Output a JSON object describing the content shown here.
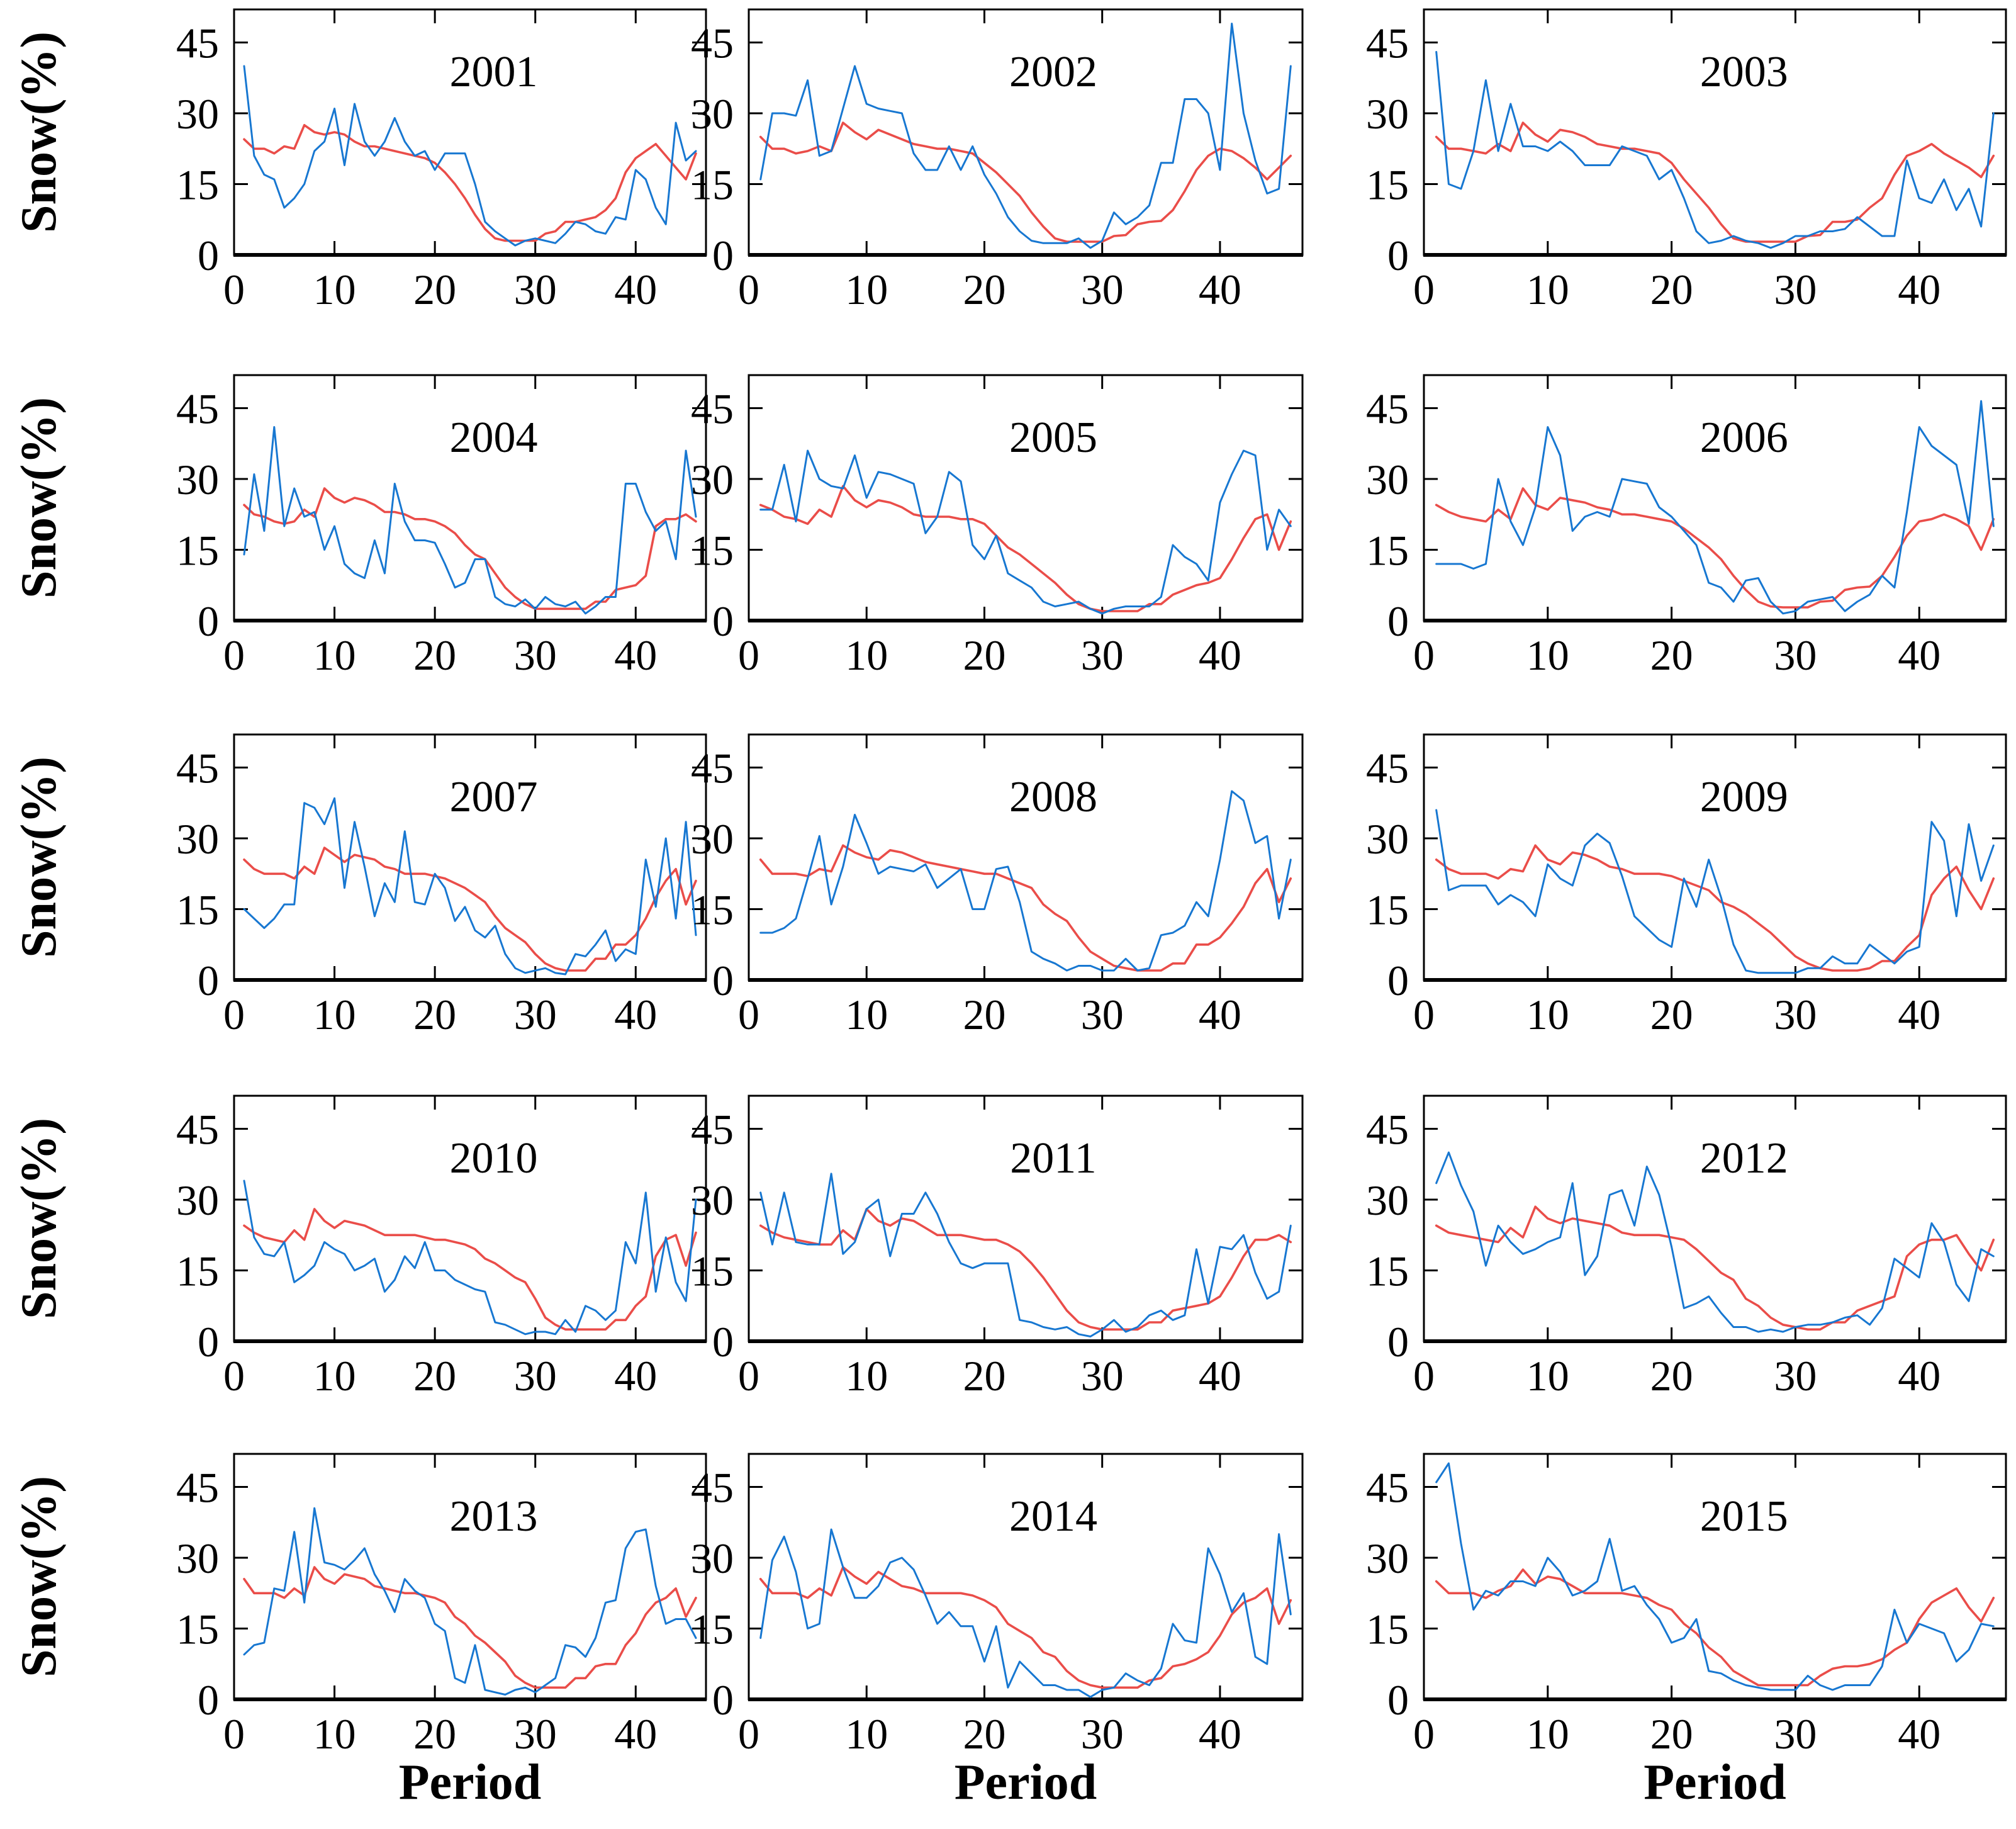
{
  "figure": {
    "ylabel": "Snow(%)",
    "xlabel": "Period",
    "colors": {
      "observed": "#1777d1",
      "mean": "#ea4d49",
      "axis": "#000000"
    },
    "x_ticks": [
      0,
      10,
      20,
      30,
      40
    ],
    "y_ticks": [
      0,
      15,
      30,
      45
    ],
    "x_range": [
      0,
      47
    ],
    "y_range": [
      0,
      52
    ],
    "grid": "off",
    "legend": "none"
  },
  "chart_data": [
    {
      "type": "line",
      "title": "2001",
      "x_start": 1,
      "observed": [
        40,
        21,
        17,
        16,
        10,
        12,
        15,
        22,
        24,
        31,
        19,
        32,
        24,
        21,
        24,
        29,
        24,
        21,
        22,
        18,
        21.5,
        21.5,
        21.5,
        15,
        7,
        5,
        3.5,
        2,
        3,
        3.5,
        3,
        2.5,
        4.5,
        7,
        6.5,
        5,
        4.5,
        8,
        7.5,
        18,
        16,
        10,
        6.5,
        28,
        20,
        22
      ],
      "mean": [
        24.5,
        22.5,
        22.5,
        21.5,
        23,
        22.5,
        27.5,
        26,
        25.5,
        26,
        25.5,
        24,
        23,
        23,
        22.5,
        22,
        21.5,
        21,
        20.5,
        19.5,
        17.5,
        15,
        12,
        8.5,
        5.5,
        3.5,
        3,
        3,
        3,
        3,
        4.5,
        5,
        7,
        7,
        7.5,
        8,
        9.5,
        12,
        17.5,
        20.5,
        22,
        23.5,
        21,
        18.5,
        16,
        21.5
      ]
    },
    {
      "type": "line",
      "title": "2002",
      "x_start": 1,
      "observed": [
        16,
        30,
        30,
        29.5,
        37,
        21,
        22,
        31,
        40,
        32,
        31,
        30.5,
        30,
        21.5,
        18,
        18,
        23,
        18,
        23,
        17,
        13,
        8,
        5,
        3,
        2.5,
        2.5,
        2.5,
        3.5,
        1.5,
        3,
        9,
        6.5,
        8,
        10.5,
        19.5,
        19.5,
        33,
        33,
        30,
        18,
        49,
        30,
        20,
        13,
        14,
        40
      ],
      "mean": [
        25,
        22.5,
        22.5,
        21.5,
        22,
        23,
        22,
        28,
        26,
        24.5,
        26.5,
        25.5,
        24.5,
        23.5,
        23,
        22.5,
        22.5,
        22,
        21.5,
        19.5,
        17.5,
        15,
        12.5,
        9,
        6,
        3.5,
        2.8,
        2.8,
        2.8,
        2.8,
        4,
        4.2,
        6.5,
        7,
        7.2,
        9.5,
        13.5,
        18,
        21,
        22.5,
        22,
        20.5,
        18.5,
        16,
        18.5,
        21
      ]
    },
    {
      "type": "line",
      "title": "2003",
      "x_start": 1,
      "observed": [
        43,
        15,
        14,
        22,
        37,
        22,
        32,
        23,
        23,
        22,
        24,
        22,
        19,
        19,
        19,
        23,
        22,
        21,
        16,
        18,
        12,
        5,
        2.5,
        3,
        4,
        3,
        2.5,
        1.5,
        2.5,
        4,
        4,
        5,
        5,
        5.5,
        8,
        6,
        4,
        4,
        20,
        12,
        11,
        16,
        9.5,
        14,
        6,
        30
      ],
      "mean": [
        25,
        22.5,
        22.5,
        22,
        21.5,
        23.5,
        22,
        28,
        25.5,
        24,
        26.5,
        26,
        25,
        23.5,
        23,
        22.5,
        22.5,
        22,
        21.5,
        19.5,
        16,
        13,
        10,
        6.5,
        3.5,
        2.8,
        2.8,
        2.8,
        2.8,
        2.8,
        4,
        4.2,
        7,
        7,
        7.5,
        10,
        12,
        17,
        21,
        22,
        23.5,
        21.5,
        20,
        18.5,
        16.5,
        21
      ]
    },
    {
      "type": "line",
      "title": "2004",
      "x_start": 1,
      "observed": [
        14,
        31,
        19,
        41,
        20,
        28,
        22,
        23,
        15,
        20,
        12,
        10,
        9,
        17,
        10,
        29,
        21,
        17,
        17,
        16.5,
        12,
        7,
        8,
        13,
        13,
        5,
        3.5,
        3,
        4.5,
        2.5,
        5,
        3.5,
        3,
        4,
        1.5,
        3,
        5,
        5,
        29,
        29,
        23,
        19,
        21,
        13,
        36,
        22
      ],
      "mean": [
        24.5,
        22.5,
        22,
        21,
        20.5,
        21,
        23.5,
        22,
        28,
        26,
        25,
        26,
        25.5,
        24.5,
        23,
        23,
        22.5,
        21.5,
        21.5,
        21,
        20,
        18.5,
        16,
        14,
        13,
        10,
        7,
        5,
        3.5,
        2.5,
        2.5,
        2.5,
        2.5,
        2.5,
        2.5,
        4,
        4,
        6.5,
        7,
        7.5,
        9.5,
        20,
        21.5,
        21.5,
        22.5,
        21
      ]
    },
    {
      "type": "line",
      "title": "2005",
      "x_start": 1,
      "observed": [
        23.5,
        23.5,
        33,
        21,
        36,
        30,
        28.5,
        28,
        35,
        26,
        31.5,
        31,
        30,
        29,
        18.5,
        22,
        31.5,
        29.5,
        16,
        13,
        18,
        10,
        8.5,
        7,
        4,
        3,
        3.5,
        4,
        2.5,
        1.5,
        2.5,
        3,
        3,
        3,
        5,
        16,
        13.5,
        12,
        8.5,
        25,
        31,
        36,
        35,
        15,
        23.5,
        20
      ],
      "mean": [
        24.5,
        23.5,
        22,
        21.5,
        20.5,
        23.5,
        22,
        28.5,
        25.5,
        24,
        25.5,
        25,
        24,
        22.5,
        22,
        22,
        22,
        21.5,
        21.5,
        20.5,
        18,
        15.5,
        14,
        12,
        10,
        8,
        5.5,
        3.5,
        2.5,
        2,
        2,
        2,
        2,
        3.5,
        3.5,
        5.5,
        6.5,
        7.5,
        8,
        9,
        13,
        17.5,
        21.5,
        22.5,
        15,
        21
      ]
    },
    {
      "type": "line",
      "title": "2006",
      "x_start": 1,
      "observed": [
        12,
        12,
        12,
        11,
        12,
        30,
        21,
        16,
        24,
        41,
        35,
        19,
        22,
        23,
        22,
        30,
        29.5,
        29,
        24,
        22,
        19,
        16,
        8,
        7,
        4,
        8.5,
        9,
        4,
        1.5,
        2,
        4,
        4.5,
        5,
        2,
        4,
        5.5,
        9.5,
        7,
        23,
        41,
        37,
        35,
        33,
        20.5,
        46.5,
        20
      ],
      "mean": [
        24.5,
        23,
        22,
        21.5,
        21,
        23.5,
        21.5,
        28,
        24.5,
        23.5,
        26,
        25.5,
        25,
        24,
        23.5,
        22.5,
        22.5,
        22,
        21.5,
        21,
        19.5,
        17.5,
        15.5,
        13,
        9.5,
        6.5,
        4,
        3,
        2.8,
        2.8,
        2.8,
        4,
        4.2,
        6.5,
        7,
        7.2,
        9.5,
        13.5,
        18,
        21,
        21.5,
        22.5,
        21.5,
        20,
        15,
        21.5
      ]
    },
    {
      "type": "line",
      "title": "2007",
      "x_start": 1,
      "observed": [
        15,
        13,
        11,
        13,
        16,
        16,
        37.5,
        36.5,
        33,
        38.5,
        19.5,
        33.5,
        24,
        13.5,
        20.5,
        16.5,
        31.5,
        16.5,
        16,
        22.5,
        19.5,
        12.5,
        15.5,
        10.5,
        9,
        11.5,
        5.5,
        2.5,
        1.5,
        2,
        2.5,
        1.5,
        1.2,
        5.5,
        5,
        7.5,
        10.5,
        4,
        6.5,
        5.5,
        25.5,
        15.5,
        30,
        13,
        33.5,
        9.5
      ],
      "mean": [
        25.5,
        23.5,
        22.5,
        22.5,
        22.5,
        21.5,
        24,
        22.5,
        28,
        26.5,
        25,
        26.5,
        26,
        25.5,
        24,
        23.5,
        22.5,
        22.5,
        22.5,
        22,
        21.5,
        20.5,
        19.5,
        18,
        16.5,
        13.5,
        11,
        9.5,
        8,
        5.5,
        3.5,
        2.5,
        2,
        2,
        2,
        4.5,
        4.5,
        7.5,
        7.5,
        9.5,
        13,
        17.5,
        21,
        23.5,
        16,
        21
      ]
    },
    {
      "type": "line",
      "title": "2008",
      "x_start": 1,
      "observed": [
        10,
        10,
        11,
        13,
        21.5,
        30.5,
        16,
        24,
        35,
        29,
        22.5,
        24,
        23.5,
        23,
        24.5,
        19.5,
        21.5,
        23.5,
        15,
        15,
        23.5,
        24,
        16.5,
        6,
        4.5,
        3.5,
        2,
        3,
        3,
        2,
        2,
        4.5,
        2,
        2.5,
        9.5,
        10,
        11.5,
        16.5,
        13.5,
        25.5,
        40,
        38,
        29,
        30.5,
        13,
        25.5
      ],
      "mean": [
        25.5,
        22.5,
        22.5,
        22.5,
        22,
        23.5,
        23,
        28.5,
        27,
        26,
        25.5,
        27.5,
        27,
        26,
        25,
        24.5,
        24,
        23.5,
        23,
        22.5,
        22.5,
        21.5,
        20.5,
        19.5,
        16,
        14,
        12.5,
        9,
        6,
        4.5,
        3,
        2.5,
        2,
        2,
        2,
        3.5,
        3.5,
        7.5,
        7.5,
        9,
        12,
        15.5,
        20.5,
        23.5,
        16.5,
        21.5
      ]
    },
    {
      "type": "line",
      "title": "2009",
      "x_start": 1,
      "observed": [
        36,
        19,
        20,
        20,
        20,
        16,
        18,
        16.5,
        13.5,
        24.5,
        21.5,
        20,
        28.5,
        31,
        29,
        22,
        13.5,
        11,
        8.5,
        7,
        21.5,
        15.5,
        25.5,
        17.5,
        7.5,
        2,
        1.5,
        1.5,
        1.5,
        1.5,
        2.5,
        2.5,
        5,
        3.5,
        3.5,
        7.5,
        5.5,
        3.5,
        6,
        7,
        33.5,
        29.5,
        13.5,
        33,
        21,
        28.5
      ],
      "mean": [
        25.5,
        23.5,
        22.5,
        22.5,
        22.5,
        21.5,
        23.5,
        23,
        28.5,
        25.5,
        24.5,
        27,
        26.5,
        25.5,
        24,
        23.5,
        22.5,
        22.5,
        22.5,
        22,
        21,
        20,
        19,
        16.5,
        15.5,
        14,
        12,
        10,
        7.5,
        5,
        3.5,
        2.5,
        2,
        2,
        2,
        2.5,
        4,
        4,
        7,
        9.5,
        18,
        21.5,
        24,
        19,
        15,
        21.5
      ]
    },
    {
      "type": "line",
      "title": "2010",
      "x_start": 1,
      "observed": [
        34,
        22,
        18.5,
        18,
        21,
        12.5,
        14,
        16,
        21,
        19.5,
        18.5,
        15,
        16,
        17.5,
        10.5,
        13,
        18,
        15.5,
        21,
        15,
        15,
        13,
        12,
        11,
        10.5,
        4,
        3.5,
        2.5,
        1.5,
        2,
        2,
        1.5,
        4.5,
        2,
        7.5,
        6.5,
        4.5,
        6.5,
        21,
        16.5,
        31.5,
        10.5,
        22,
        12.5,
        8.5,
        30
      ],
      "mean": [
        24.5,
        23,
        22,
        21.5,
        21,
        23.5,
        21.5,
        28,
        25.5,
        24,
        25.5,
        25,
        24.5,
        23.5,
        22.5,
        22.5,
        22.5,
        22.5,
        22,
        21.5,
        21.5,
        21,
        20.5,
        19.5,
        17.5,
        16.5,
        15,
        13.5,
        12.5,
        9,
        5,
        3.5,
        2.5,
        2.5,
        2.5,
        2.5,
        2.5,
        4.5,
        4.5,
        7.5,
        9.5,
        18,
        21.5,
        22.5,
        16,
        23
      ]
    },
    {
      "type": "line",
      "title": "2011",
      "x_start": 1,
      "observed": [
        31.5,
        20.5,
        31.5,
        21,
        20.5,
        20.5,
        35.5,
        18.5,
        21,
        28,
        30,
        18,
        27,
        27,
        31.5,
        27,
        21,
        16.5,
        15.5,
        16.5,
        16.5,
        16.5,
        4.5,
        4,
        3,
        2.5,
        3,
        1.5,
        1,
        2.5,
        4.5,
        2,
        3,
        5.5,
        6.5,
        4.5,
        5.5,
        19.5,
        8,
        20,
        19.5,
        22.5,
        14.5,
        9,
        10.5,
        24.5
      ],
      "mean": [
        24.5,
        23,
        22,
        21.5,
        21,
        20.5,
        20.5,
        23.5,
        21.5,
        28,
        25.5,
        24.5,
        26,
        25.5,
        24,
        22.5,
        22.5,
        22.5,
        22,
        21.5,
        21.5,
        20.5,
        19,
        16.5,
        13.5,
        10,
        6.5,
        4,
        3,
        2.5,
        2.5,
        2.5,
        2.5,
        4,
        4,
        6.5,
        7,
        7.5,
        8,
        9.5,
        13.5,
        18,
        21.5,
        21.5,
        22.5,
        21
      ]
    },
    {
      "type": "line",
      "title": "2012",
      "x_start": 1,
      "observed": [
        33.5,
        40,
        33,
        27.5,
        16,
        24.5,
        21,
        18.5,
        19.5,
        21,
        22,
        33.5,
        14,
        18,
        31,
        32,
        24.5,
        37,
        31,
        20,
        7,
        8,
        9.5,
        6,
        3,
        3,
        2,
        2.5,
        2,
        3,
        3.5,
        3.5,
        4,
        5,
        5.5,
        3.5,
        7,
        17.5,
        15.5,
        13.5,
        25,
        21,
        12,
        8.5,
        19.5,
        18
      ],
      "mean": [
        24.5,
        23,
        22.5,
        22,
        21.5,
        21,
        24,
        22,
        28.5,
        26,
        25,
        26,
        25.5,
        25,
        24.5,
        23,
        22.5,
        22.5,
        22.5,
        22,
        21.5,
        19.5,
        17,
        14.5,
        13,
        9,
        7.5,
        5,
        3.5,
        3,
        2.5,
        2.5,
        4,
        4,
        6.5,
        7.5,
        8.5,
        9.5,
        18,
        20.5,
        21.5,
        21.5,
        22.5,
        18.5,
        15,
        21.5
      ]
    },
    {
      "type": "line",
      "title": "2013",
      "x_start": 1,
      "observed": [
        9.5,
        11.5,
        12,
        23.5,
        23,
        35.5,
        20.5,
        40.5,
        29,
        28.5,
        27.5,
        29.5,
        32,
        26.5,
        23,
        18.5,
        25.5,
        23,
        21.5,
        16,
        14.5,
        4.5,
        3.5,
        11.5,
        2,
        1.5,
        1,
        2,
        2.5,
        1.5,
        3,
        4.5,
        11.5,
        11,
        9,
        13,
        20.5,
        21,
        32,
        35.5,
        36,
        24,
        16,
        17,
        17,
        13
      ],
      "mean": [
        25.5,
        22.5,
        22.5,
        22.5,
        21.5,
        23.5,
        22,
        28,
        25.5,
        24.5,
        26.5,
        26,
        25.5,
        24,
        23.5,
        23,
        22.5,
        22.5,
        22,
        21.5,
        20.5,
        17.5,
        16,
        13.5,
        12,
        10,
        8,
        5,
        3.5,
        2.5,
        2.5,
        2.5,
        2.5,
        4.5,
        4.5,
        7,
        7.5,
        7.5,
        11.5,
        14,
        18,
        20.5,
        21.5,
        23.5,
        17.5,
        21.5
      ]
    },
    {
      "type": "line",
      "title": "2014",
      "x_start": 1,
      "observed": [
        13,
        29.5,
        34.5,
        27,
        15,
        16,
        36,
        28,
        21.5,
        21.5,
        24,
        29,
        30,
        27.5,
        22,
        16,
        18.5,
        15.5,
        15.5,
        8,
        15.5,
        2.5,
        8,
        5.5,
        3,
        3,
        2,
        2,
        0.5,
        2,
        2.5,
        5.5,
        4,
        3,
        6.5,
        16,
        12.5,
        12,
        32,
        26.5,
        18.5,
        22.5,
        9,
        7.5,
        35,
        18
      ],
      "mean": [
        25.5,
        22.5,
        22.5,
        22.5,
        21.5,
        23.5,
        22,
        28,
        26,
        24.5,
        27,
        25.5,
        24,
        23.5,
        22.5,
        22.5,
        22.5,
        22.5,
        22,
        21,
        19.5,
        16,
        14.5,
        13,
        10,
        9,
        6,
        4,
        3,
        2.5,
        2.5,
        2.5,
        2.5,
        4,
        4.5,
        7,
        7.5,
        8.5,
        10,
        13.5,
        18,
        20.5,
        21.5,
        23.5,
        16,
        21
      ]
    },
    {
      "type": "line",
      "title": "2015",
      "x_start": 1,
      "observed": [
        46,
        50,
        33,
        19,
        23,
        22,
        25,
        25,
        24,
        30,
        27,
        22,
        23,
        25,
        34,
        23,
        24,
        20,
        17,
        12,
        13,
        17,
        6,
        5.5,
        4,
        3,
        2.5,
        2,
        2,
        2,
        5,
        3,
        2,
        3,
        3,
        3,
        7,
        19,
        12,
        16,
        15,
        14,
        8,
        10.5,
        16,
        15.5
      ],
      "mean": [
        25,
        22.5,
        22.5,
        22.5,
        21.5,
        23,
        24,
        27.5,
        24.5,
        26,
        25.5,
        24,
        22.5,
        22.5,
        22.5,
        22.5,
        22,
        21.5,
        20,
        19,
        16,
        14,
        11,
        9,
        6,
        4.5,
        3,
        3,
        3,
        3,
        3,
        5,
        6.5,
        7,
        7,
        7.5,
        8.5,
        10.5,
        12,
        17,
        20.5,
        22,
        23.5,
        19.5,
        16.5,
        21.5
      ]
    }
  ]
}
